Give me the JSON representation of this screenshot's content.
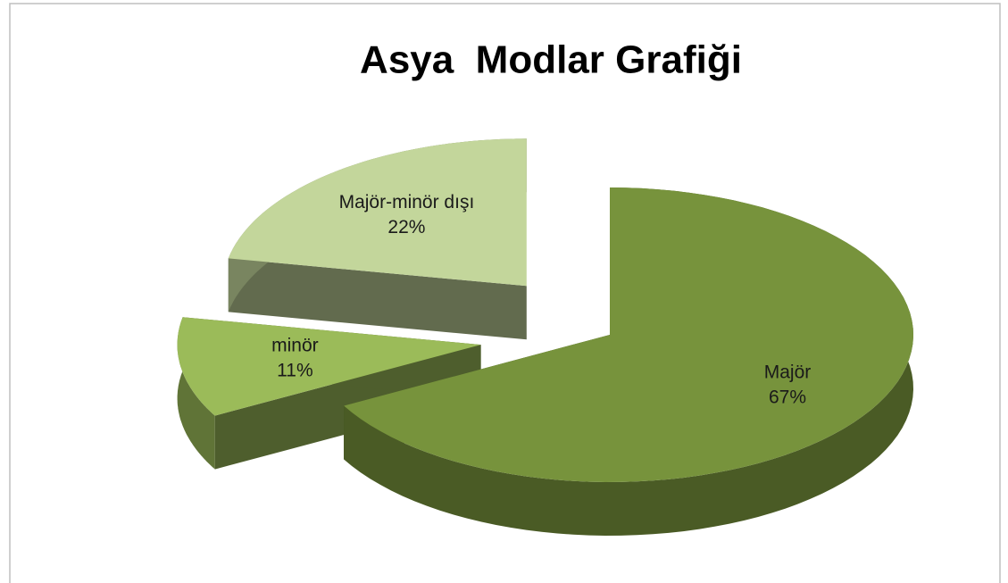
{
  "chart_data": {
    "type": "pie",
    "title": "Asya  Modlar Grafiği",
    "categories": [
      "Majör",
      "minör",
      "Majör-minör dışı"
    ],
    "values": [
      67,
      11,
      22
    ],
    "value_labels": [
      "67%",
      "11%",
      "22%"
    ],
    "colors": [
      "#77933c",
      "#9bbb59",
      "#c3d69b"
    ]
  }
}
